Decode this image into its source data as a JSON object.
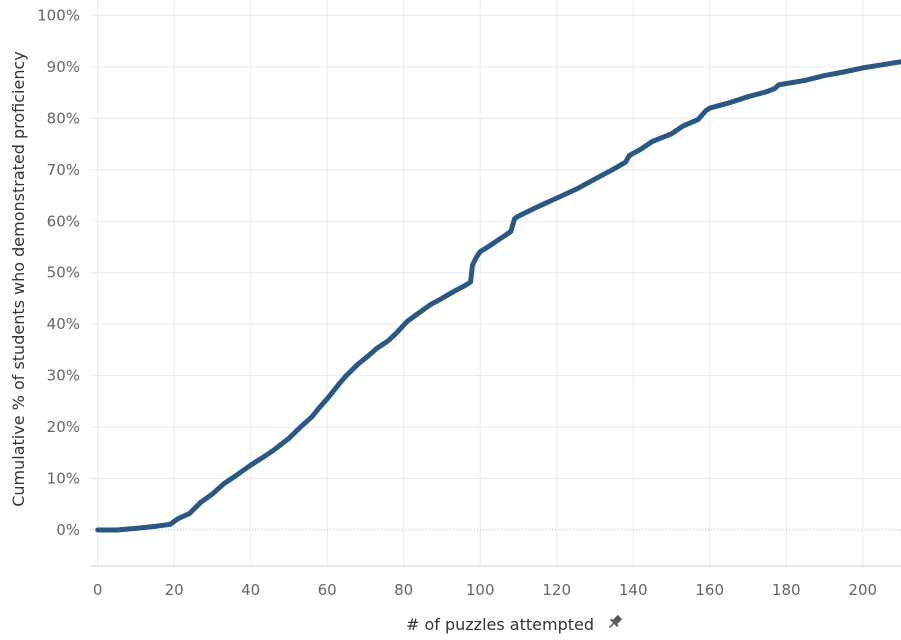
{
  "chart_data": {
    "type": "line",
    "xlabel": "# of puzzles attempted",
    "ylabel": "Cumulative % of students who demonstrated proficiency",
    "xlim": [
      -2,
      210
    ],
    "ylim": [
      -7,
      103
    ],
    "x_ticks": [
      0,
      20,
      40,
      60,
      80,
      100,
      120,
      140,
      160,
      180,
      200
    ],
    "y_ticks": [
      0,
      10,
      20,
      30,
      40,
      50,
      60,
      70,
      80,
      90,
      100
    ],
    "y_tick_suffix": "%",
    "grid": true,
    "legend": "none",
    "xlabel_icon": "pin-icon",
    "colors": {
      "line": "#2a5783",
      "grid": "#ececec",
      "axis": "#cccccc",
      "text": "#666666"
    },
    "series": [
      {
        "x": [
          0,
          5,
          10,
          15,
          19,
          21,
          24,
          27,
          30,
          33,
          36,
          40,
          43,
          46,
          50,
          53,
          56,
          58,
          60,
          63,
          65,
          68,
          71,
          73,
          76,
          78,
          81,
          84,
          87,
          90,
          93,
          96,
          97.5,
          98,
          99,
          100,
          102,
          104,
          106,
          108,
          109,
          110,
          115,
          120,
          125,
          130,
          135,
          138,
          139,
          142,
          145,
          150,
          153,
          157,
          159,
          160,
          165,
          170,
          175,
          177,
          178,
          185,
          190,
          195,
          200,
          205,
          210
        ],
        "y": [
          0,
          0,
          0.3,
          0.7,
          1.1,
          2.2,
          3.2,
          5.4,
          7.0,
          9.0,
          10.5,
          12.6,
          14.0,
          15.5,
          17.8,
          20.0,
          22.0,
          23.8,
          25.5,
          28.3,
          30.0,
          32.2,
          34.0,
          35.3,
          36.8,
          38.2,
          40.6,
          42.2,
          43.8,
          45.0,
          46.3,
          47.5,
          48.2,
          51.5,
          53.0,
          54.1,
          55.0,
          56.0,
          57.0,
          58.0,
          60.5,
          61.0,
          62.8,
          64.5,
          66.2,
          68.2,
          70.2,
          71.5,
          72.8,
          74.0,
          75.5,
          77.0,
          78.5,
          79.8,
          81.5,
          82.0,
          83.0,
          84.2,
          85.2,
          85.8,
          86.5,
          87.4,
          88.3,
          89.0,
          89.8,
          90.4,
          91.0
        ]
      }
    ]
  }
}
